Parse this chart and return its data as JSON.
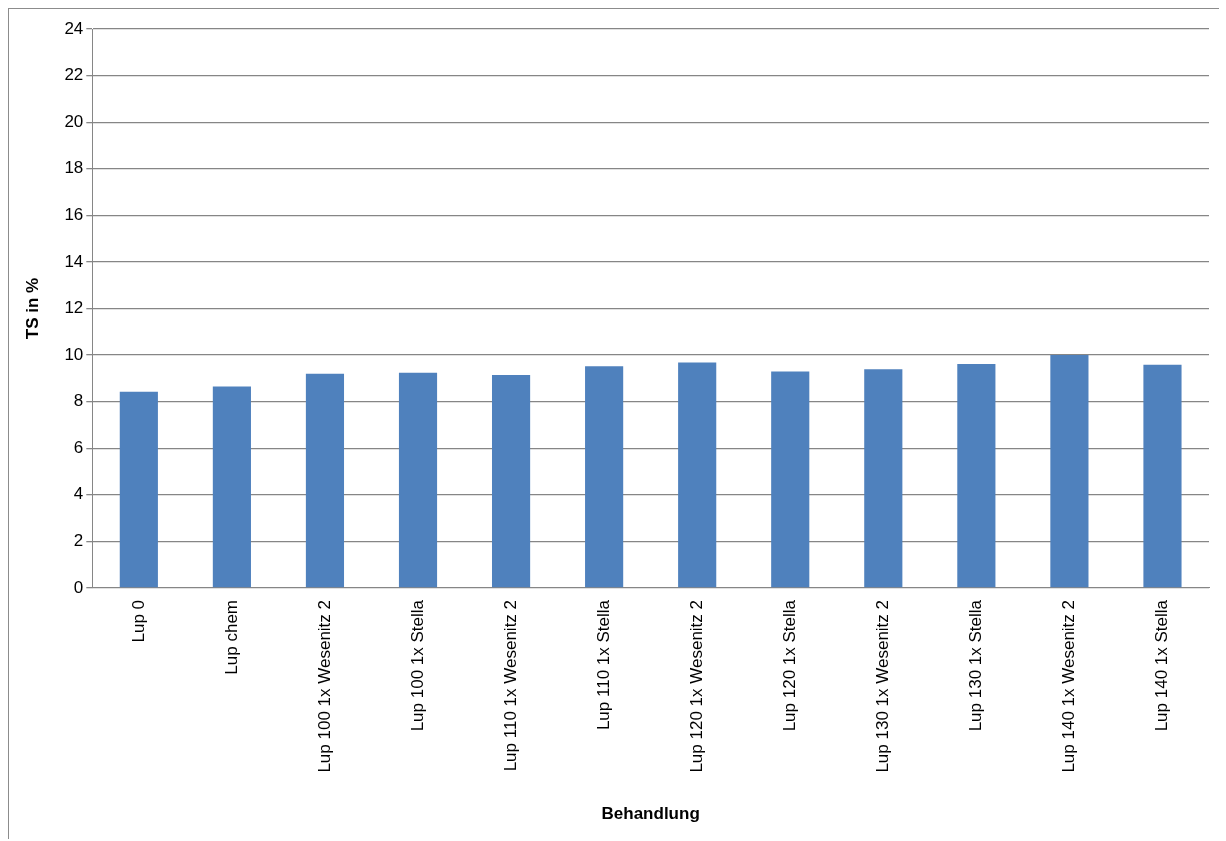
{
  "chart_data": {
    "type": "bar",
    "xlabel": "Behandlung",
    "ylabel": "TS in %",
    "categories": [
      "Lup 0",
      "Lup chem",
      "Lup 100 1x Wesenitz 2",
      "Lup 100 1x Stella",
      "Lup 110 1x Wesenitz 2",
      "Lup 110 1x Stella",
      "Lup 120 1x Wesenitz 2",
      "Lup 120 1x Stella",
      "Lup 130 1x Wesenitz 2",
      "Lup 130 1x Stella",
      "Lup 140 1x Wesenitz 2",
      "Lup 140 1x Stella"
    ],
    "values": [
      8.42,
      8.65,
      9.2,
      9.24,
      9.14,
      9.52,
      9.68,
      9.29,
      9.39,
      9.62,
      10.0,
      9.58
    ],
    "color": "#4f81bd",
    "ylim": [
      0,
      24
    ],
    "yticks": [
      0,
      2,
      4,
      6,
      8,
      10,
      12,
      14,
      16,
      18,
      20,
      22,
      24
    ],
    "grid": "y",
    "legend": false
  }
}
